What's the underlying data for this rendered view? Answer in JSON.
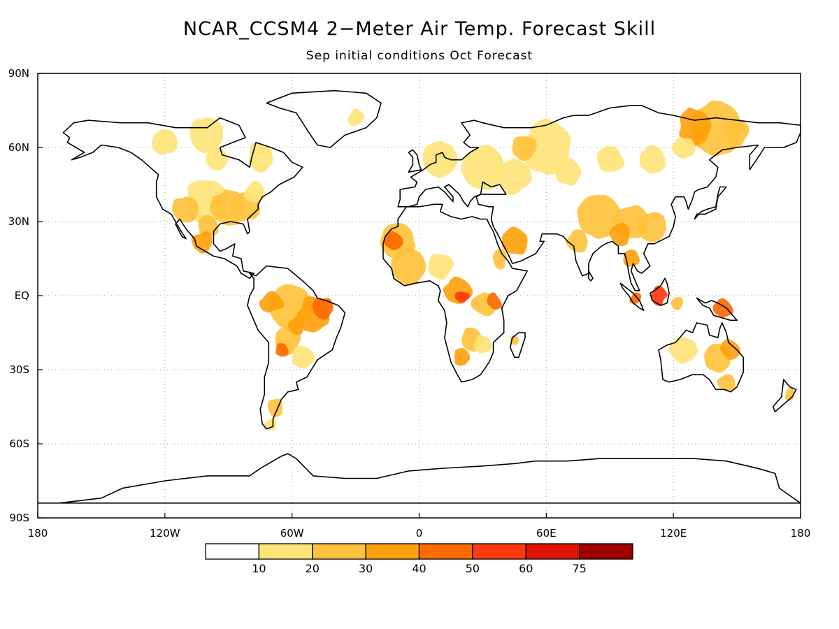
{
  "title": "NCAR_CCSM4 2−Meter Air Temp. Forecast Skill",
  "subtitle": "Sep initial conditions  Oct Forecast",
  "lat_ticks": [
    "90N",
    "60N",
    "30N",
    "EQ",
    "30S",
    "60S",
    "90S"
  ],
  "lon_ticks": [
    "180",
    "120W",
    "60W",
    "0",
    "60E",
    "120E",
    "180"
  ],
  "colorbar": {
    "labels": [
      "10",
      "20",
      "30",
      "40",
      "50",
      "60",
      "75"
    ],
    "colors": [
      "#ffffff",
      "#ffe47a",
      "#ffc23c",
      "#ffa10c",
      "#ff6a00",
      "#ff3a10",
      "#dc1600",
      "#a00000"
    ]
  },
  "map_data": {
    "type": "filled-contour",
    "variable": "forecast skill",
    "projection": "cylindrical equidistant",
    "lon_range": [
      -180,
      180
    ],
    "lat_range": [
      -90,
      90
    ],
    "contour_levels": [
      10,
      20,
      30,
      40,
      50,
      60,
      75
    ]
  }
}
